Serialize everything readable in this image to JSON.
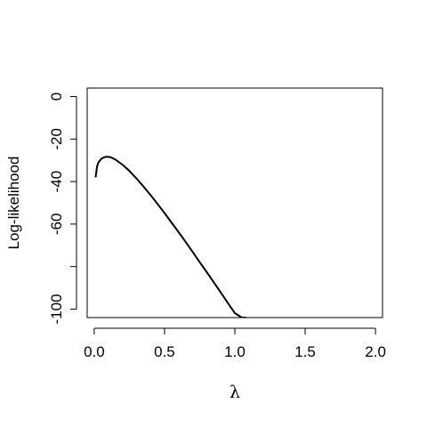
{
  "chart_data": {
    "type": "line",
    "title": "",
    "xlabel": "λ",
    "ylabel": "Log-likelihood",
    "xlim": [
      -0.05,
      2.05
    ],
    "ylim": [
      -104,
      4
    ],
    "x_ticks": [
      {
        "value": 0.0,
        "label": "0.0"
      },
      {
        "value": 0.5,
        "label": "0.5"
      },
      {
        "value": 1.0,
        "label": "1.0"
      },
      {
        "value": 1.5,
        "label": "1.5"
      },
      {
        "value": 2.0,
        "label": "2.0"
      }
    ],
    "y_ticks": [
      {
        "value": 0,
        "label": "0"
      },
      {
        "value": -20,
        "label": "-20"
      },
      {
        "value": -40,
        "label": "-40"
      },
      {
        "value": -60,
        "label": "-60"
      },
      {
        "value": -80,
        "label": ""
      },
      {
        "value": -100,
        "label": "-100"
      }
    ],
    "series": [
      {
        "x": [
          0.01,
          0.02,
          0.03,
          0.05,
          0.07,
          0.09,
          0.12,
          0.15,
          0.2,
          0.25,
          0.3,
          0.35,
          0.4,
          0.45,
          0.5,
          0.55,
          0.6,
          0.65,
          0.7,
          0.75,
          0.8,
          0.85,
          0.9,
          0.95,
          1.0,
          1.05,
          1.08
        ],
        "y": [
          -38,
          -33,
          -31,
          -29.3,
          -28.6,
          -28.3,
          -28.6,
          -29.6,
          -32.0,
          -35.0,
          -38.5,
          -42.3,
          -46.3,
          -50.5,
          -54.8,
          -59.3,
          -63.8,
          -68.4,
          -73.1,
          -77.9,
          -82.6,
          -87.4,
          -92.2,
          -97.1,
          -101.9,
          -104.0,
          -104.0
        ]
      }
    ],
    "grid": false,
    "legend": "none"
  }
}
